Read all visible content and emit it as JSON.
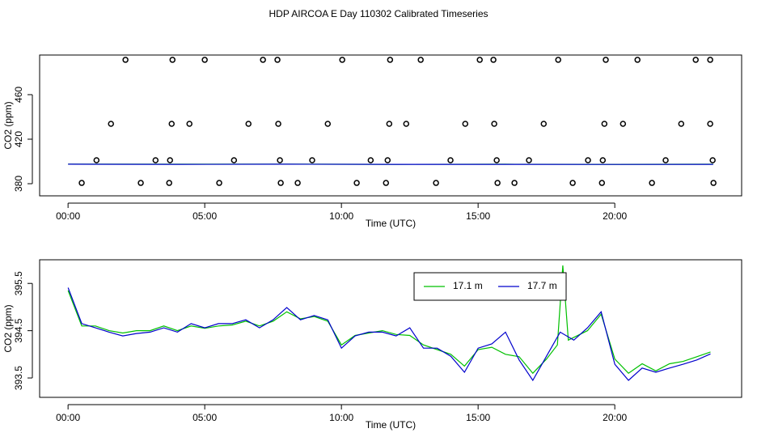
{
  "title": "HDP AIRCOA E  Day 110302  Calibrated Timeseries",
  "chart_data": [
    {
      "type": "scatter",
      "xlabel": "Time (UTC)",
      "ylabel": "CO2 (ppm)",
      "xlim": [
        -1.04,
        24.64
      ],
      "ylim": [
        369.1,
        495.6
      ],
      "xticks": [
        {
          "value": 0,
          "label": "00:00"
        },
        {
          "value": 5,
          "label": "05:00"
        },
        {
          "value": 10,
          "label": "10:00"
        },
        {
          "value": 15,
          "label": "15:00"
        },
        {
          "value": 20,
          "label": "20:00"
        }
      ],
      "yticks": [
        380,
        420,
        460
      ],
      "color": "#000000",
      "x": [
        2.1,
        3.82,
        5.0,
        7.13,
        7.66,
        10.03,
        11.78,
        12.9,
        15.06,
        15.56,
        17.93,
        19.67,
        20.83,
        22.96,
        23.49,
        1.57,
        3.79,
        4.44,
        6.6,
        7.69,
        9.5,
        11.75,
        12.37,
        14.53,
        15.59,
        17.4,
        19.62,
        20.3,
        22.43,
        23.49,
        1.04,
        3.2,
        3.73,
        6.07,
        7.75,
        8.93,
        11.07,
        11.69,
        13.99,
        15.68,
        16.86,
        19.02,
        19.56,
        21.86,
        23.58,
        0.5,
        2.66,
        3.7,
        5.53,
        7.78,
        8.4,
        10.56,
        11.63,
        13.46,
        15.71,
        16.33,
        18.46,
        19.53,
        21.36,
        23.61
      ],
      "values": [
        491.3,
        491.3,
        491.3,
        491.3,
        491.3,
        491.3,
        491.3,
        491.3,
        491.3,
        491.3,
        491.3,
        491.3,
        491.3,
        491.3,
        491.3,
        433.8,
        433.8,
        433.8,
        433.8,
        433.8,
        433.8,
        433.8,
        433.8,
        433.8,
        433.8,
        433.8,
        433.8,
        433.8,
        433.8,
        433.8,
        401.1,
        401.1,
        401.1,
        401.1,
        401.1,
        401.1,
        401.1,
        401.1,
        401.1,
        401.1,
        401.1,
        401.1,
        401.1,
        401.1,
        401.1,
        380.7,
        380.7,
        380.7,
        380.7,
        380.7,
        380.7,
        380.7,
        380.7,
        380.7,
        380.7,
        380.7,
        380.7,
        380.7,
        380.7,
        380.7
      ],
      "series": [
        {
          "color": "#00c000",
          "x": [
            0,
            4,
            8,
            12,
            16,
            20,
            23.6
          ],
          "values": [
            397.6,
            397.5,
            397.6,
            397.4,
            397.5,
            397.4,
            397.5
          ]
        },
        {
          "color": "#0000cc",
          "x": [
            0,
            4,
            8,
            12,
            16,
            20,
            23.6
          ],
          "values": [
            397.5,
            397.4,
            397.5,
            397.4,
            397.4,
            397.3,
            397.4
          ]
        }
      ]
    },
    {
      "type": "line",
      "xlabel": "Time (UTC)",
      "ylabel": "CO2 (ppm)",
      "xlim": [
        -1.04,
        24.64
      ],
      "ylim": [
        393.09,
        396.0
      ],
      "xticks": [
        {
          "value": 0,
          "label": "00:00"
        },
        {
          "value": 5,
          "label": "05:00"
        },
        {
          "value": 10,
          "label": "10:00"
        },
        {
          "value": 15,
          "label": "15:00"
        },
        {
          "value": 20,
          "label": "20:00"
        }
      ],
      "yticks": [
        393.5,
        394.5,
        395.5
      ],
      "legend": "top",
      "series": [
        {
          "name": "17.1 m",
          "color": "#00c000",
          "x": [
            0,
            0.5,
            1,
            1.5,
            2,
            2.5,
            3,
            3.5,
            4,
            4.5,
            5,
            5.5,
            6,
            6.5,
            7,
            7.5,
            8,
            8.5,
            9,
            9.5,
            10,
            10.5,
            11,
            11.5,
            12,
            12.5,
            13,
            13.5,
            14,
            14.5,
            15,
            15.5,
            16,
            16.5,
            17,
            17.5,
            17.9,
            18.1,
            18.3,
            19,
            19.5,
            20,
            20.5,
            21,
            21.5,
            22,
            22.5,
            23,
            23.5
          ],
          "values": [
            395.35,
            394.6,
            394.6,
            394.5,
            394.45,
            394.5,
            394.5,
            394.6,
            394.5,
            394.6,
            394.55,
            394.6,
            394.62,
            394.7,
            394.6,
            394.7,
            394.9,
            394.75,
            394.8,
            394.7,
            394.2,
            394.4,
            394.45,
            394.5,
            394.42,
            394.4,
            394.2,
            394.1,
            394.0,
            393.75,
            394.1,
            394.15,
            394.0,
            393.95,
            393.6,
            393.9,
            394.2,
            395.88,
            394.3,
            394.5,
            394.85,
            393.9,
            393.6,
            393.8,
            393.65,
            393.8,
            393.85,
            393.95,
            394.05
          ]
        },
        {
          "name": "17.7 m",
          "color": "#0000cc",
          "x": [
            0,
            0.5,
            1,
            1.5,
            2,
            2.5,
            3,
            3.5,
            4,
            4.5,
            5,
            5.5,
            6,
            6.5,
            7,
            7.5,
            8,
            8.5,
            9,
            9.5,
            10,
            10.5,
            11,
            11.5,
            12,
            12.5,
            13,
            13.5,
            14,
            14.5,
            15,
            15.5,
            16,
            16.5,
            17,
            17.5,
            18,
            18.5,
            19,
            19.5,
            20,
            20.5,
            21,
            21.5,
            22,
            22.5,
            23,
            23.5
          ],
          "values": [
            395.41,
            394.65,
            394.56,
            394.47,
            394.39,
            394.44,
            394.47,
            394.56,
            394.47,
            394.65,
            394.56,
            394.65,
            394.65,
            394.73,
            394.56,
            394.73,
            394.99,
            394.73,
            394.82,
            394.73,
            394.13,
            394.39,
            394.47,
            394.47,
            394.39,
            394.56,
            394.13,
            394.13,
            393.96,
            393.62,
            394.13,
            394.22,
            394.47,
            393.88,
            393.45,
            393.96,
            394.47,
            394.3,
            394.56,
            394.9,
            393.79,
            393.45,
            393.71,
            393.62,
            393.71,
            393.79,
            393.88,
            394.01
          ]
        }
      ]
    }
  ]
}
